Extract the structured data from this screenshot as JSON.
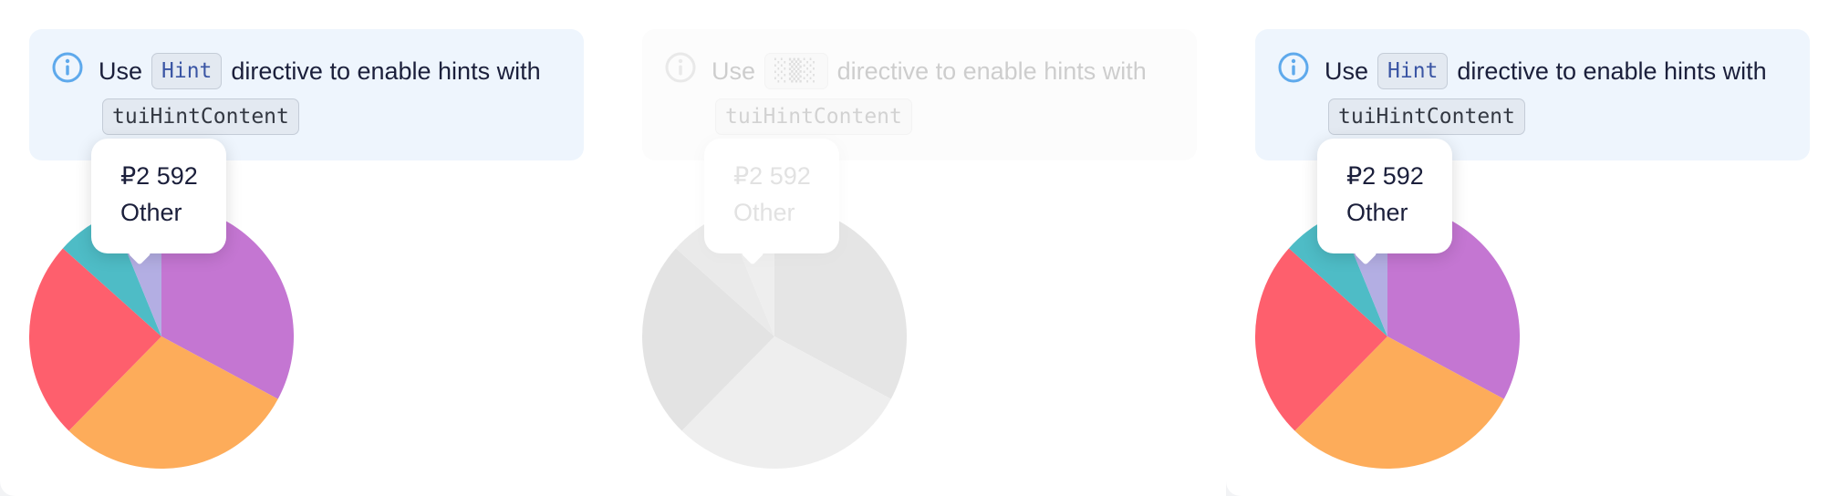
{
  "notice": {
    "prefix": "Use",
    "hint_code": "Hint",
    "suffix": "directive to enable hints with",
    "content_code": "tuiHintContent",
    "icon": "info-icon"
  },
  "tooltip": {
    "value": "₽2 592",
    "label": "Other"
  },
  "garbled_hint_code": "░▒░",
  "colors": {
    "purple": "#c476d2",
    "orange": "#fdac5a",
    "red": "#fe5f6d",
    "teal": "#4ebcc6",
    "other_highlight": "#a6a0de",
    "notice_bg": "#eef5fd",
    "info_blue": "#5ea9ec"
  },
  "chart_data": {
    "type": "pie",
    "values": [
      13769,
      12367,
      10172,
      3018,
      2592
    ],
    "categories": [
      "",
      "",
      "",
      "",
      "Other"
    ],
    "highlighted": "Other"
  }
}
